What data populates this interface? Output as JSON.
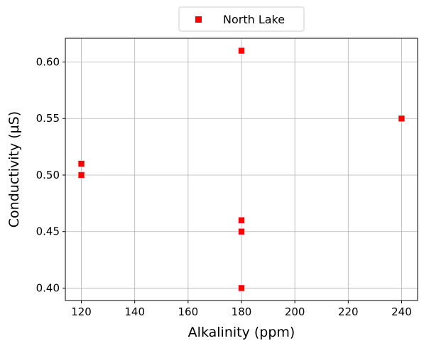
{
  "chart_data": {
    "type": "scatter",
    "xlabel": "Alkalinity (ppm)",
    "ylabel": "Conductivity (µS)",
    "xlim": [
      114,
      246
    ],
    "ylim": [
      0.389,
      0.621
    ],
    "xticks": [
      120,
      140,
      160,
      180,
      200,
      220,
      240
    ],
    "yticks": [
      0.4,
      0.45,
      0.5,
      0.55,
      0.6
    ],
    "xtick_labels": [
      "120",
      "140",
      "160",
      "180",
      "200",
      "220",
      "240"
    ],
    "ytick_labels": [
      "0.40",
      "0.45",
      "0.50",
      "0.55",
      "0.60"
    ],
    "grid": true,
    "legend_placement": "top-center, outside plot",
    "series": [
      {
        "name": "North Lake",
        "color": "#ff0000",
        "marker": "square",
        "points": [
          {
            "x": 120,
            "y": 0.51
          },
          {
            "x": 120,
            "y": 0.5
          },
          {
            "x": 180,
            "y": 0.61
          },
          {
            "x": 180,
            "y": 0.46
          },
          {
            "x": 180,
            "y": 0.45
          },
          {
            "x": 180,
            "y": 0.4
          },
          {
            "x": 240,
            "y": 0.55
          }
        ]
      }
    ]
  }
}
